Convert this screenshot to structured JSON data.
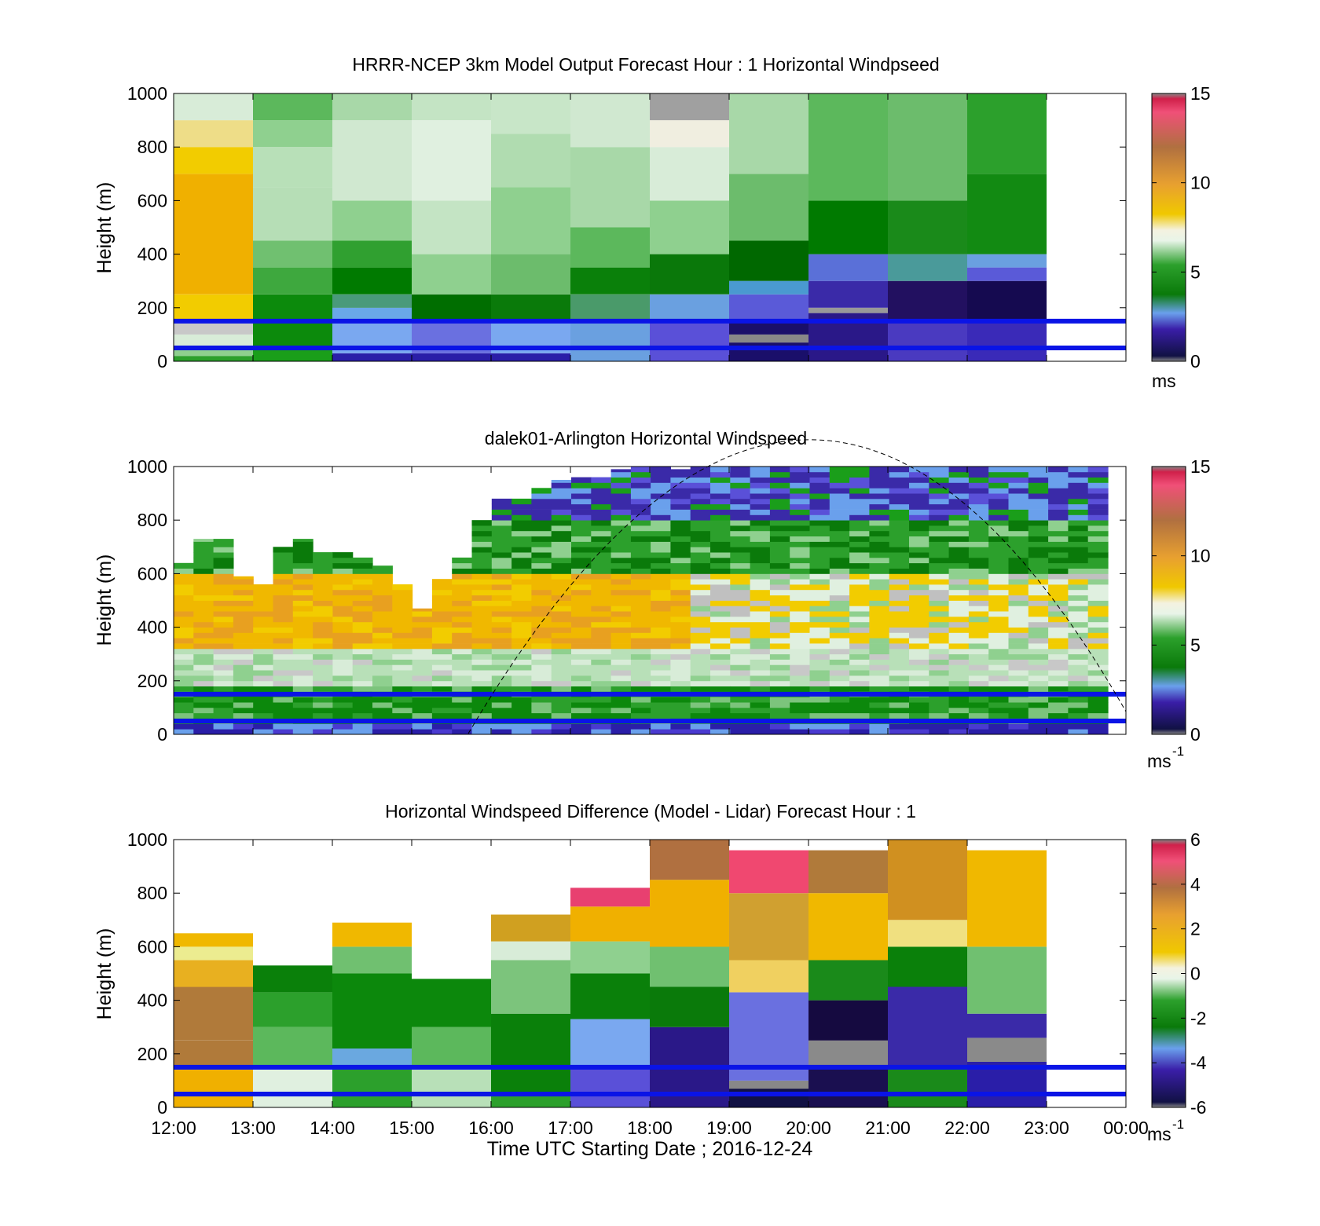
{
  "chart_data": [
    {
      "type": "heatmap",
      "title": "HRRR-NCEP 3km Model Output   Forecast Hour : 1 Horizontal Windpseed",
      "ylabel": "Height (m)",
      "ylim": [
        0,
        1000
      ],
      "yticks": [
        "0",
        "200",
        "400",
        "600",
        "800",
        "1000"
      ],
      "xlim": [
        "12:00",
        "00:00"
      ],
      "colorbar": {
        "range": [
          0,
          15
        ],
        "ticks": [
          "0",
          "5",
          "10",
          "15"
        ],
        "unit": "ms",
        "unit_exponent": ""
      },
      "horizontal_lines_m": [
        150,
        50
      ],
      "cells": [
        {
          "x0": 0,
          "x1": 1,
          "bands": [
            [
              0,
              20,
              "#2ca02c"
            ],
            [
              20,
              50,
              "#8fd08f"
            ],
            [
              50,
              100,
              "#d8ecd8"
            ],
            [
              100,
              150,
              "#c8c8c8"
            ],
            [
              150,
              250,
              "#f2cc00"
            ],
            [
              250,
              700,
              "#f0b000"
            ],
            [
              700,
              800,
              "#f2cc00"
            ],
            [
              800,
              900,
              "#eedd88"
            ],
            [
              900,
              1000,
              "#d8ecd8"
            ]
          ]
        },
        {
          "x0": 1,
          "x1": 2,
          "bands": [
            [
              0,
              50,
              "#1a9e1a"
            ],
            [
              50,
              250,
              "#0c8a0c"
            ],
            [
              250,
              350,
              "#3ea83e"
            ],
            [
              350,
              450,
              "#70c070"
            ],
            [
              450,
              650,
              "#b6deb6"
            ],
            [
              650,
              800,
              "#b8e0b8"
            ],
            [
              800,
              900,
              "#8fd08f"
            ],
            [
              900,
              1000,
              "#5cb85c"
            ]
          ]
        },
        {
          "x0": 2,
          "x1": 3,
          "bands": [
            [
              0,
              30,
              "#2a1ea8"
            ],
            [
              30,
              150,
              "#7aa8f0"
            ],
            [
              150,
              200,
              "#6aa8e8"
            ],
            [
              200,
              250,
              "#4a9a7a"
            ],
            [
              250,
              350,
              "#007a00"
            ],
            [
              350,
              450,
              "#30a030"
            ],
            [
              450,
              600,
              "#8fd08f"
            ],
            [
              600,
              900,
              "#d0e8d0"
            ],
            [
              900,
              1000,
              "#a8d8a8"
            ]
          ]
        },
        {
          "x0": 3,
          "x1": 4,
          "bands": [
            [
              0,
              30,
              "#2a1ea8"
            ],
            [
              30,
              150,
              "#6a70e0"
            ],
            [
              150,
              250,
              "#006e00"
            ],
            [
              250,
              400,
              "#8fd08f"
            ],
            [
              400,
              600,
              "#c4e4c4"
            ],
            [
              600,
              900,
              "#e0f0e0"
            ],
            [
              900,
              1000,
              "#c4e4c4"
            ]
          ]
        },
        {
          "x0": 4,
          "x1": 5,
          "bands": [
            [
              0,
              30,
              "#2a1ea8"
            ],
            [
              30,
              150,
              "#7aa8f0"
            ],
            [
              150,
              250,
              "#0a7a0a"
            ],
            [
              250,
              400,
              "#6cbc6c"
            ],
            [
              400,
              650,
              "#8fd08f"
            ],
            [
              650,
              850,
              "#b0dcb0"
            ],
            [
              850,
              1000,
              "#c8e6c8"
            ]
          ]
        },
        {
          "x0": 5,
          "x1": 6,
          "bands": [
            [
              0,
              150,
              "#6aa0e0"
            ],
            [
              150,
              250,
              "#4a9a6a"
            ],
            [
              250,
              350,
              "#0a800a"
            ],
            [
              350,
              500,
              "#5cb85c"
            ],
            [
              500,
              800,
              "#a8d8a8"
            ],
            [
              800,
              1000,
              "#d0e8d0"
            ]
          ]
        },
        {
          "x0": 6,
          "x1": 7,
          "bands": [
            [
              0,
              150,
              "#5a50d8"
            ],
            [
              150,
              250,
              "#6aa0e0"
            ],
            [
              250,
              400,
              "#0a780a"
            ],
            [
              400,
              600,
              "#8fd08f"
            ],
            [
              600,
              800,
              "#d8ecd8"
            ],
            [
              800,
              900,
              "#f0eee0"
            ],
            [
              900,
              1000,
              "#a0a0a0"
            ]
          ]
        },
        {
          "x0": 7,
          "x1": 8,
          "bands": [
            [
              0,
              70,
              "#1a0f6a"
            ],
            [
              70,
              100,
              "#888888"
            ],
            [
              100,
              150,
              "#1a0f6a"
            ],
            [
              150,
              250,
              "#5a5ad8"
            ],
            [
              250,
              300,
              "#4a9ad0"
            ],
            [
              300,
              450,
              "#006800"
            ],
            [
              450,
              700,
              "#6cbc6c"
            ],
            [
              700,
              1000,
              "#a8d8a8"
            ]
          ]
        },
        {
          "x0": 8,
          "x1": 9,
          "bands": [
            [
              0,
              180,
              "#2a1888"
            ],
            [
              180,
              200,
              "#999999"
            ],
            [
              200,
              300,
              "#3a2aa8"
            ],
            [
              300,
              400,
              "#5a70d8"
            ],
            [
              400,
              600,
              "#007a00"
            ],
            [
              600,
              1000,
              "#5cb85c"
            ]
          ]
        },
        {
          "x0": 9,
          "x1": 10,
          "bands": [
            [
              0,
              150,
              "#4a3ac0"
            ],
            [
              150,
              300,
              "#221060"
            ],
            [
              300,
              400,
              "#4a9a9a"
            ],
            [
              400,
              600,
              "#1a8a1a"
            ],
            [
              600,
              1000,
              "#6cbc6c"
            ]
          ]
        },
        {
          "x0": 10,
          "x1": 11,
          "bands": [
            [
              0,
              150,
              "#3a2ab8"
            ],
            [
              150,
              300,
              "#150a50"
            ],
            [
              300,
              350,
              "#5a5ad8"
            ],
            [
              350,
              400,
              "#6aa0e0"
            ],
            [
              400,
              700,
              "#128a12"
            ],
            [
              700,
              1000,
              "#2ca02c"
            ]
          ]
        }
      ]
    },
    {
      "type": "heatmap",
      "title": "dalek01-Arlington  Horizontal Windspeed",
      "ylabel": "Height (m)",
      "ylim": [
        0,
        1000
      ],
      "yticks": [
        "0",
        "200",
        "400",
        "600",
        "800",
        "1000"
      ],
      "xlim": [
        "12:00",
        "00:00"
      ],
      "colorbar": {
        "range": [
          0,
          15
        ],
        "ticks": [
          "0",
          "5",
          "10",
          "15"
        ],
        "unit": "ms",
        "unit_exponent": "-1"
      },
      "horizontal_lines_m": [
        150,
        50
      ],
      "column_top_m": [
        640,
        730,
        730,
        590,
        560,
        700,
        730,
        680,
        680,
        660,
        630,
        560,
        470,
        580,
        660,
        800,
        880,
        880,
        920,
        950,
        960,
        960,
        990,
        1000,
        1000,
        990,
        1000,
        1000,
        1000,
        1000,
        1000,
        1000,
        1000,
        1000,
        1000,
        1000,
        1000,
        1000,
        1000,
        1000,
        1000,
        1000,
        1000,
        1000,
        1000,
        1000,
        1000
      ]
    },
    {
      "type": "heatmap",
      "title": "Horizontal Windspeed Difference (Model - Lidar) Forecast Hour : 1",
      "xlabel": "Time UTC  Starting Date ; 2016-12-24",
      "ylabel": "Height (m)",
      "ylim": [
        0,
        1000
      ],
      "yticks": [
        "0",
        "200",
        "400",
        "600",
        "800",
        "1000"
      ],
      "xticks": [
        "12:00",
        "13:00",
        "14:00",
        "15:00",
        "16:00",
        "17:00",
        "18:00",
        "19:00",
        "20:00",
        "21:00",
        "22:00",
        "23:00",
        "00:00"
      ],
      "colorbar": {
        "range": [
          -6,
          6
        ],
        "ticks": [
          "-6",
          "-4",
          "-2",
          "0",
          "2",
          "4",
          "6"
        ],
        "unit": "ms",
        "unit_exponent": "-1"
      },
      "horizontal_lines_m": [
        150,
        50
      ],
      "cells": [
        {
          "x0": 0,
          "x1": 1,
          "bands": [
            [
              0,
              150,
              "#f0b000"
            ],
            [
              150,
              250,
              "#b07a3a"
            ],
            [
              250,
              450,
              "#b07a3a"
            ],
            [
              450,
              550,
              "#e8b020"
            ],
            [
              550,
              600,
              "#ecec90"
            ],
            [
              600,
              650,
              "#f0b800"
            ]
          ]
        },
        {
          "x0": 1,
          "x1": 2,
          "bands": [
            [
              0,
              150,
              "#e0f0e0"
            ],
            [
              150,
              300,
              "#5cb85c"
            ],
            [
              300,
              430,
              "#2ca02c"
            ],
            [
              430,
              530,
              "#0a800a"
            ]
          ]
        },
        {
          "x0": 2,
          "x1": 3,
          "bands": [
            [
              0,
              150,
              "#2ca02c"
            ],
            [
              150,
              220,
              "#6aa8e0"
            ],
            [
              220,
              500,
              "#0c880c"
            ],
            [
              500,
              600,
              "#70c070"
            ],
            [
              600,
              690,
              "#f0b800"
            ]
          ]
        },
        {
          "x0": 3,
          "x1": 4,
          "bands": [
            [
              0,
              150,
              "#b8e0b8"
            ],
            [
              150,
              300,
              "#5cb85c"
            ],
            [
              300,
              480,
              "#0c880c"
            ]
          ]
        },
        {
          "x0": 4,
          "x1": 5,
          "bands": [
            [
              0,
              50,
              "#2ca02c"
            ],
            [
              50,
              350,
              "#0a800a"
            ],
            [
              350,
              550,
              "#7cc47c"
            ],
            [
              550,
              620,
              "#d8ecd8"
            ],
            [
              620,
              720,
              "#d0a020"
            ]
          ]
        },
        {
          "x0": 5,
          "x1": 6,
          "bands": [
            [
              0,
              150,
              "#5a50d8"
            ],
            [
              150,
              330,
              "#7aa8f0"
            ],
            [
              330,
              500,
              "#0a800a"
            ],
            [
              500,
              620,
              "#8fd08f"
            ],
            [
              620,
              750,
              "#f0b000"
            ],
            [
              750,
              820,
              "#e84070"
            ]
          ]
        },
        {
          "x0": 6,
          "x1": 7,
          "bands": [
            [
              0,
              300,
              "#2a1888"
            ],
            [
              300,
              450,
              "#0a7a0a"
            ],
            [
              450,
              600,
              "#70c070"
            ],
            [
              600,
              850,
              "#f0b000"
            ],
            [
              850,
              1000,
              "#b07040"
            ]
          ]
        },
        {
          "x0": 7,
          "x1": 8,
          "bands": [
            [
              0,
              70,
              "#111144"
            ],
            [
              70,
              100,
              "#888888"
            ],
            [
              100,
              430,
              "#6a70e0"
            ],
            [
              430,
              550,
              "#f0d060"
            ],
            [
              550,
              800,
              "#d0a030"
            ],
            [
              800,
              960,
              "#f04870"
            ]
          ]
        },
        {
          "x0": 8,
          "x1": 9,
          "bands": [
            [
              0,
              150,
              "#1a0f50"
            ],
            [
              150,
              250,
              "#8a8a8a"
            ],
            [
              250,
              400,
              "#150a40"
            ],
            [
              400,
              550,
              "#1a8a1a"
            ],
            [
              550,
              800,
              "#f0b800"
            ],
            [
              800,
              960,
              "#b07a3a"
            ]
          ]
        },
        {
          "x0": 9,
          "x1": 10,
          "bands": [
            [
              0,
              150,
              "#1a8a1a"
            ],
            [
              150,
              450,
              "#3a2aa8"
            ],
            [
              450,
              600,
              "#0a800a"
            ],
            [
              600,
              700,
              "#f0e080"
            ],
            [
              700,
              1000,
              "#d09020"
            ]
          ]
        },
        {
          "x0": 10,
          "x1": 11,
          "bands": [
            [
              0,
              170,
              "#2a1ea8"
            ],
            [
              170,
              260,
              "#8a8a8a"
            ],
            [
              260,
              350,
              "#3a2aa8"
            ],
            [
              350,
              600,
              "#70c070"
            ],
            [
              600,
              960,
              "#f0b800"
            ]
          ]
        }
      ]
    }
  ]
}
